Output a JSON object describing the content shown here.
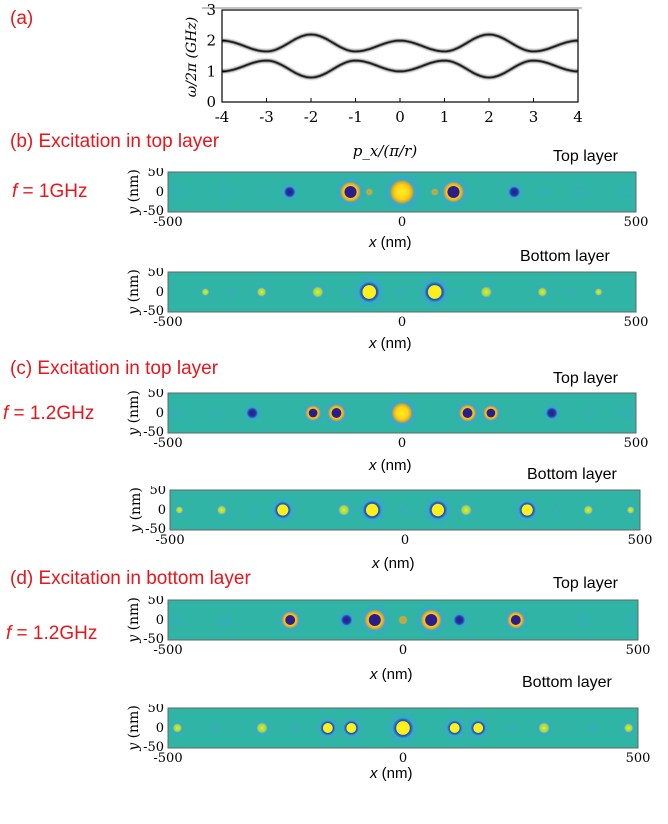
{
  "panel_labels": {
    "a": "(a)",
    "b": "(b) Excitation in top layer",
    "c": "(c) Excitation in top layer",
    "d": "(d) Excitation in bottom layer"
  },
  "freq_labels": {
    "b_prefix": "f",
    "b_value": " = 1GHz",
    "c_prefix": "f",
    "c_value": " = 1.2GHz",
    "d_prefix": "f",
    "d_value": " = 1.2GHz"
  },
  "layer_labels": {
    "top": "Top layer",
    "bottom": "Bottom layer"
  },
  "map_axes": {
    "y_label_var": "y",
    "y_label_unit": " (nm)",
    "x_label_var": "x",
    "x_label_unit": " (nm)",
    "x_ticks": [
      "-500",
      "0",
      "500"
    ],
    "y_ticks": [
      "50",
      "0",
      "-50"
    ]
  },
  "colors": {
    "field_bg": "#2fb4a6",
    "positive": "#ffef1a",
    "negative": "#2a1d8c",
    "ring": "#3fa0e0",
    "red_text": "#e8151b"
  },
  "chart_data": {
    "type": "line",
    "title": "",
    "xlabel": "p_x/(π/r)",
    "ylabel": "ω/2π (GHz)",
    "xlim": [
      -4,
      4
    ],
    "ylim": [
      0,
      3
    ],
    "x_ticks": [
      "-4",
      "-3",
      "-2",
      "-1",
      "0",
      "1",
      "2",
      "3",
      "4"
    ],
    "y_ticks": [
      "0",
      "1",
      "2",
      "3"
    ],
    "series": [
      {
        "band": "upper",
        "x": [
          -4,
          -3,
          -2,
          -1,
          0,
          1,
          2,
          3,
          4
        ],
        "y": [
          2.0,
          1.65,
          2.2,
          1.65,
          2.0,
          1.65,
          2.2,
          1.65,
          2.0
        ]
      },
      {
        "band": "lower",
        "x": [
          -4,
          -3,
          -2,
          -1,
          0,
          1,
          2,
          3,
          4
        ],
        "y": [
          1.0,
          1.35,
          0.8,
          1.35,
          1.0,
          1.35,
          0.8,
          1.35,
          1.0
        ]
      }
    ]
  }
}
